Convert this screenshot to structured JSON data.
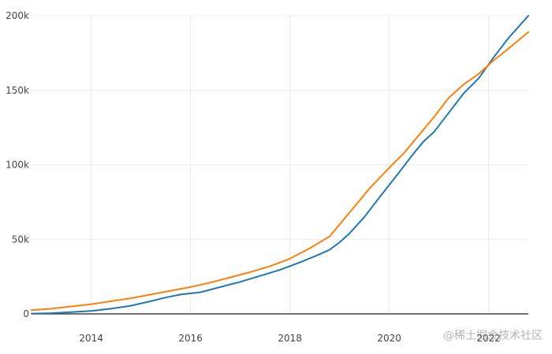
{
  "chart_data": {
    "type": "line",
    "title": "",
    "xlabel": "",
    "ylabel": "",
    "xlim": [
      2012.8,
      2022.8
    ],
    "ylim": [
      0,
      200000
    ],
    "xticks": [
      2014,
      2016,
      2018,
      2020,
      2022
    ],
    "xtick_labels": [
      "2014",
      "2016",
      "2018",
      "2020",
      "2022"
    ],
    "yticks": [
      0,
      50000,
      100000,
      150000,
      200000
    ],
    "ytick_labels": [
      "0",
      "50k",
      "100k",
      "150k",
      "200k"
    ],
    "grid": true,
    "legend": "none",
    "series": [
      {
        "color": "#1f77b4",
        "dash": "solid",
        "points": [
          [
            2012.8,
            200
          ],
          [
            2013.2,
            500
          ],
          [
            2013.6,
            1200
          ],
          [
            2014.0,
            2000
          ],
          [
            2014.4,
            3500
          ],
          [
            2014.8,
            5500
          ],
          [
            2015.2,
            8500
          ],
          [
            2015.5,
            11000
          ],
          [
            2015.8,
            13000
          ],
          [
            2016.2,
            14500
          ],
          [
            2016.6,
            18000
          ],
          [
            2017.0,
            21500
          ],
          [
            2017.4,
            25500
          ],
          [
            2017.8,
            29500
          ],
          [
            2018.2,
            34500
          ],
          [
            2018.6,
            40000
          ],
          [
            2018.8,
            43000
          ],
          [
            2019.0,
            48000
          ],
          [
            2019.2,
            54000
          ],
          [
            2019.5,
            65000
          ],
          [
            2019.8,
            78000
          ],
          [
            2020.2,
            95000
          ],
          [
            2020.5,
            108000
          ],
          [
            2020.7,
            116000
          ],
          [
            2020.9,
            122000
          ],
          [
            2021.2,
            135000
          ],
          [
            2021.5,
            148000
          ],
          [
            2021.8,
            158000
          ],
          [
            2022.1,
            172000
          ],
          [
            2022.4,
            185000
          ],
          [
            2022.8,
            200000
          ]
        ]
      },
      {
        "color": "#ff7f0e",
        "dash": "mixed",
        "points": [
          [
            2012.8,
            2500
          ],
          [
            2013.2,
            3500
          ],
          [
            2013.6,
            5000
          ],
          [
            2014.0,
            6500
          ],
          [
            2014.4,
            8500
          ],
          [
            2014.8,
            10500
          ],
          [
            2015.2,
            13000
          ],
          [
            2015.6,
            15500
          ],
          [
            2016.0,
            18000
          ],
          [
            2016.4,
            21000
          ],
          [
            2016.8,
            24500
          ],
          [
            2017.2,
            28000
          ],
          [
            2017.6,
            32000
          ],
          [
            2018.0,
            37000
          ],
          [
            2018.4,
            44000
          ],
          [
            2018.8,
            52000
          ],
          [
            2019.0,
            60000
          ],
          [
            2019.3,
            72000
          ],
          [
            2019.6,
            84000
          ],
          [
            2020.0,
            98000
          ],
          [
            2020.3,
            108000
          ],
          [
            2020.6,
            120000
          ],
          [
            2020.9,
            132000
          ],
          [
            2021.2,
            145000
          ],
          [
            2021.5,
            154000
          ],
          [
            2021.8,
            161000
          ],
          [
            2022.1,
            170000
          ],
          [
            2022.4,
            178000
          ],
          [
            2022.8,
            189000
          ]
        ]
      }
    ]
  },
  "watermark": "@稀土掘金技术社区"
}
